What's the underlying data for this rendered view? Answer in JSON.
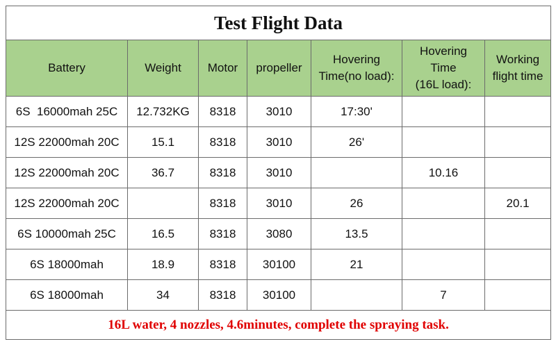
{
  "table": {
    "title": "Test Flight Data",
    "header": [
      [
        "Battery"
      ],
      [
        "Weight"
      ],
      [
        "Motor"
      ],
      [
        "propeller"
      ],
      [
        "Hovering",
        "Time(no load):"
      ],
      [
        "Hovering",
        "Time",
        "(16L load):"
      ],
      [
        "Working",
        "flight time"
      ]
    ],
    "rows": [
      [
        "6S  16000mah 25C",
        "12.732KG",
        "8318",
        "3010",
        "17:30'",
        null,
        null
      ],
      [
        "12S 22000mah 20C",
        "15.1",
        "8318",
        "3010",
        "26'",
        null,
        null
      ],
      [
        "12S 22000mah 20C",
        "36.7",
        "8318",
        "3010",
        null,
        "10.16",
        null
      ],
      [
        "12S 22000mah 20C",
        null,
        "8318",
        "3010",
        "26",
        null,
        "20.1"
      ],
      [
        "6S 10000mah 25C",
        "16.5",
        "8318",
        "3080",
        "13.5",
        null,
        null
      ],
      [
        "6S 18000mah",
        "18.9",
        "8318",
        "30100",
        "21",
        null,
        null
      ],
      [
        "6S 18000mah",
        "34",
        "8318",
        "30100",
        null,
        "7",
        null
      ]
    ],
    "footer": "16L water, 4 nozzles, 4.6minutes, complete the spraying task."
  }
}
